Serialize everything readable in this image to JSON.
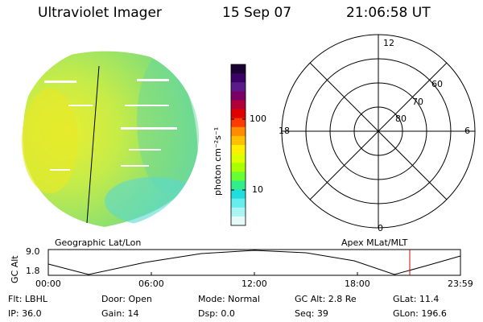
{
  "header": {
    "instrument": "Ultraviolet Imager",
    "date": "15 Sep 07",
    "time": "21:06:58 UT"
  },
  "colorbar": {
    "unit_label": "photon cm⁻²s⁻¹",
    "ticks": [
      "100",
      "10"
    ],
    "colors": [
      "#1a0033",
      "#3a0066",
      "#5a1a8a",
      "#7a0066",
      "#b0003a",
      "#e00000",
      "#ff3a00",
      "#ff8c00",
      "#ffc000",
      "#ffee00",
      "#ddff00",
      "#aaff00",
      "#66ff33",
      "#33ee88",
      "#22dddd",
      "#66eeee",
      "#aaf4f4",
      "#e6fafa"
    ]
  },
  "polar_plot": {
    "mlt_labels": [
      "12",
      "18",
      "6",
      "0"
    ],
    "lat_labels": [
      "60",
      "70",
      "80"
    ]
  },
  "captions": {
    "left": "Geographic Lat/Lon",
    "right": "Apex MLat/MLT"
  },
  "altitude_panel": {
    "ylabel": "GC Alt",
    "yticks": [
      "9.0",
      "1.8"
    ],
    "xticks": [
      "00:00",
      "06:00",
      "12:00",
      "18:00",
      "23:59"
    ],
    "marker_color": "#d40000"
  },
  "info": {
    "flt": "Flt: LBHL",
    "ip": "IP: 36.0",
    "door": "Door: Open",
    "gain": "Gain: 14",
    "mode": "Mode: Normal",
    "dsp": "Dsp:     0.0",
    "gc_alt": "GC Alt: 2.8 Re",
    "seq": "Seq: 39",
    "glat": "GLat:  11.4",
    "glon": "GLon: 196.6"
  }
}
